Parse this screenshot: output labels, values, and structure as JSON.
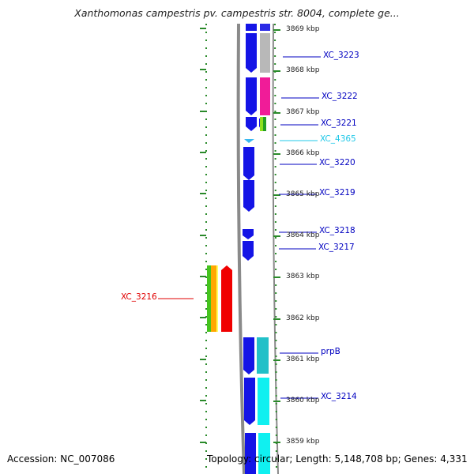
{
  "title": "Xanthomonas campestris pv. campestris str. 8004, complete ge...",
  "footer": {
    "accession": "Accession: NC_007086",
    "topology": "Topology: circular; Length: 5,148,708 bp; Genes: 4,331"
  },
  "colors": {
    "forward_gene": "#1414e6",
    "gene_label": "#0000c0",
    "trna_label": "#20c8e8",
    "highlight_label": "#e00000",
    "backbone": "#888888",
    "tick": "#2a8a2a"
  },
  "scale": {
    "unit": "kbp",
    "ticks": [
      {
        "label": "3869 kbp",
        "kb": 3869
      },
      {
        "label": "3868 kbp",
        "kb": 3868
      },
      {
        "label": "3867 kbp",
        "kb": 3867
      },
      {
        "label": "3866 kbp",
        "kb": 3866
      },
      {
        "label": "3865 kbp",
        "kb": 3865
      },
      {
        "label": "3864 kbp",
        "kb": 3864
      },
      {
        "label": "3863 kbp",
        "kb": 3863
      },
      {
        "label": "3862 kbp",
        "kb": 3862
      },
      {
        "label": "3861 kbp",
        "kb": 3861
      },
      {
        "label": "3860 kbp",
        "kb": 3860
      },
      {
        "label": "3859 kbp",
        "kb": 3859
      }
    ]
  },
  "genes": [
    {
      "label": "XC_3223",
      "type": "gene"
    },
    {
      "label": "XC_3222",
      "type": "gene"
    },
    {
      "label": "XC_3221",
      "type": "gene"
    },
    {
      "label": "XC_4365",
      "type": "tRNA"
    },
    {
      "label": "XC_3220",
      "type": "gene"
    },
    {
      "label": "XC_3219",
      "type": "gene"
    },
    {
      "label": "XC_3218",
      "type": "gene"
    },
    {
      "label": "XC_3217",
      "type": "gene"
    },
    {
      "label": "XC_3216",
      "type": "highlight"
    },
    {
      "label": "prpB",
      "type": "gene"
    },
    {
      "label": "XC_3214",
      "type": "gene"
    }
  ]
}
